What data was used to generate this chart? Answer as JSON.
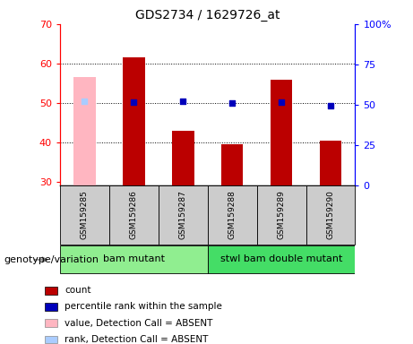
{
  "title": "GDS2734 / 1629726_at",
  "samples": [
    "GSM159285",
    "GSM159286",
    "GSM159287",
    "GSM159288",
    "GSM159289",
    "GSM159290"
  ],
  "count_values": [
    null,
    61.5,
    43.0,
    39.5,
    56.0,
    40.5
  ],
  "count_absent": [
    56.5
  ],
  "percentile_values": [
    52.5,
    52.0,
    52.5,
    51.0,
    52.0,
    49.5
  ],
  "ylim_left": [
    29,
    70
  ],
  "ylim_right": [
    0,
    100
  ],
  "yticks_left": [
    30,
    40,
    50,
    60,
    70
  ],
  "yticks_right": [
    0,
    25,
    50,
    75,
    100
  ],
  "ytick_labels_right": [
    "0",
    "25",
    "50",
    "75",
    "100%"
  ],
  "group0_label": "bam mutant",
  "group0_color": "#90EE90",
  "group0_samples": [
    0,
    1,
    2
  ],
  "group1_label": "stwl bam double mutant",
  "group1_color": "#44DD66",
  "group1_samples": [
    3,
    4,
    5
  ],
  "bar_width": 0.45,
  "count_color": "#BB0000",
  "count_absent_color": "#FFB6C1",
  "percentile_color": "#0000BB",
  "percentile_absent_color": "#AACCFF",
  "bar_bg_color": "#CCCCCC",
  "plot_bg_color": "#FFFFFF",
  "absent_sample_idx": 0,
  "genotype_label": "genotype/variation",
  "legend_items": [
    {
      "color": "#BB0000",
      "label": "count"
    },
    {
      "color": "#0000BB",
      "label": "percentile rank within the sample"
    },
    {
      "color": "#FFB6C1",
      "label": "value, Detection Call = ABSENT"
    },
    {
      "color": "#AACCFF",
      "label": "rank, Detection Call = ABSENT"
    }
  ]
}
